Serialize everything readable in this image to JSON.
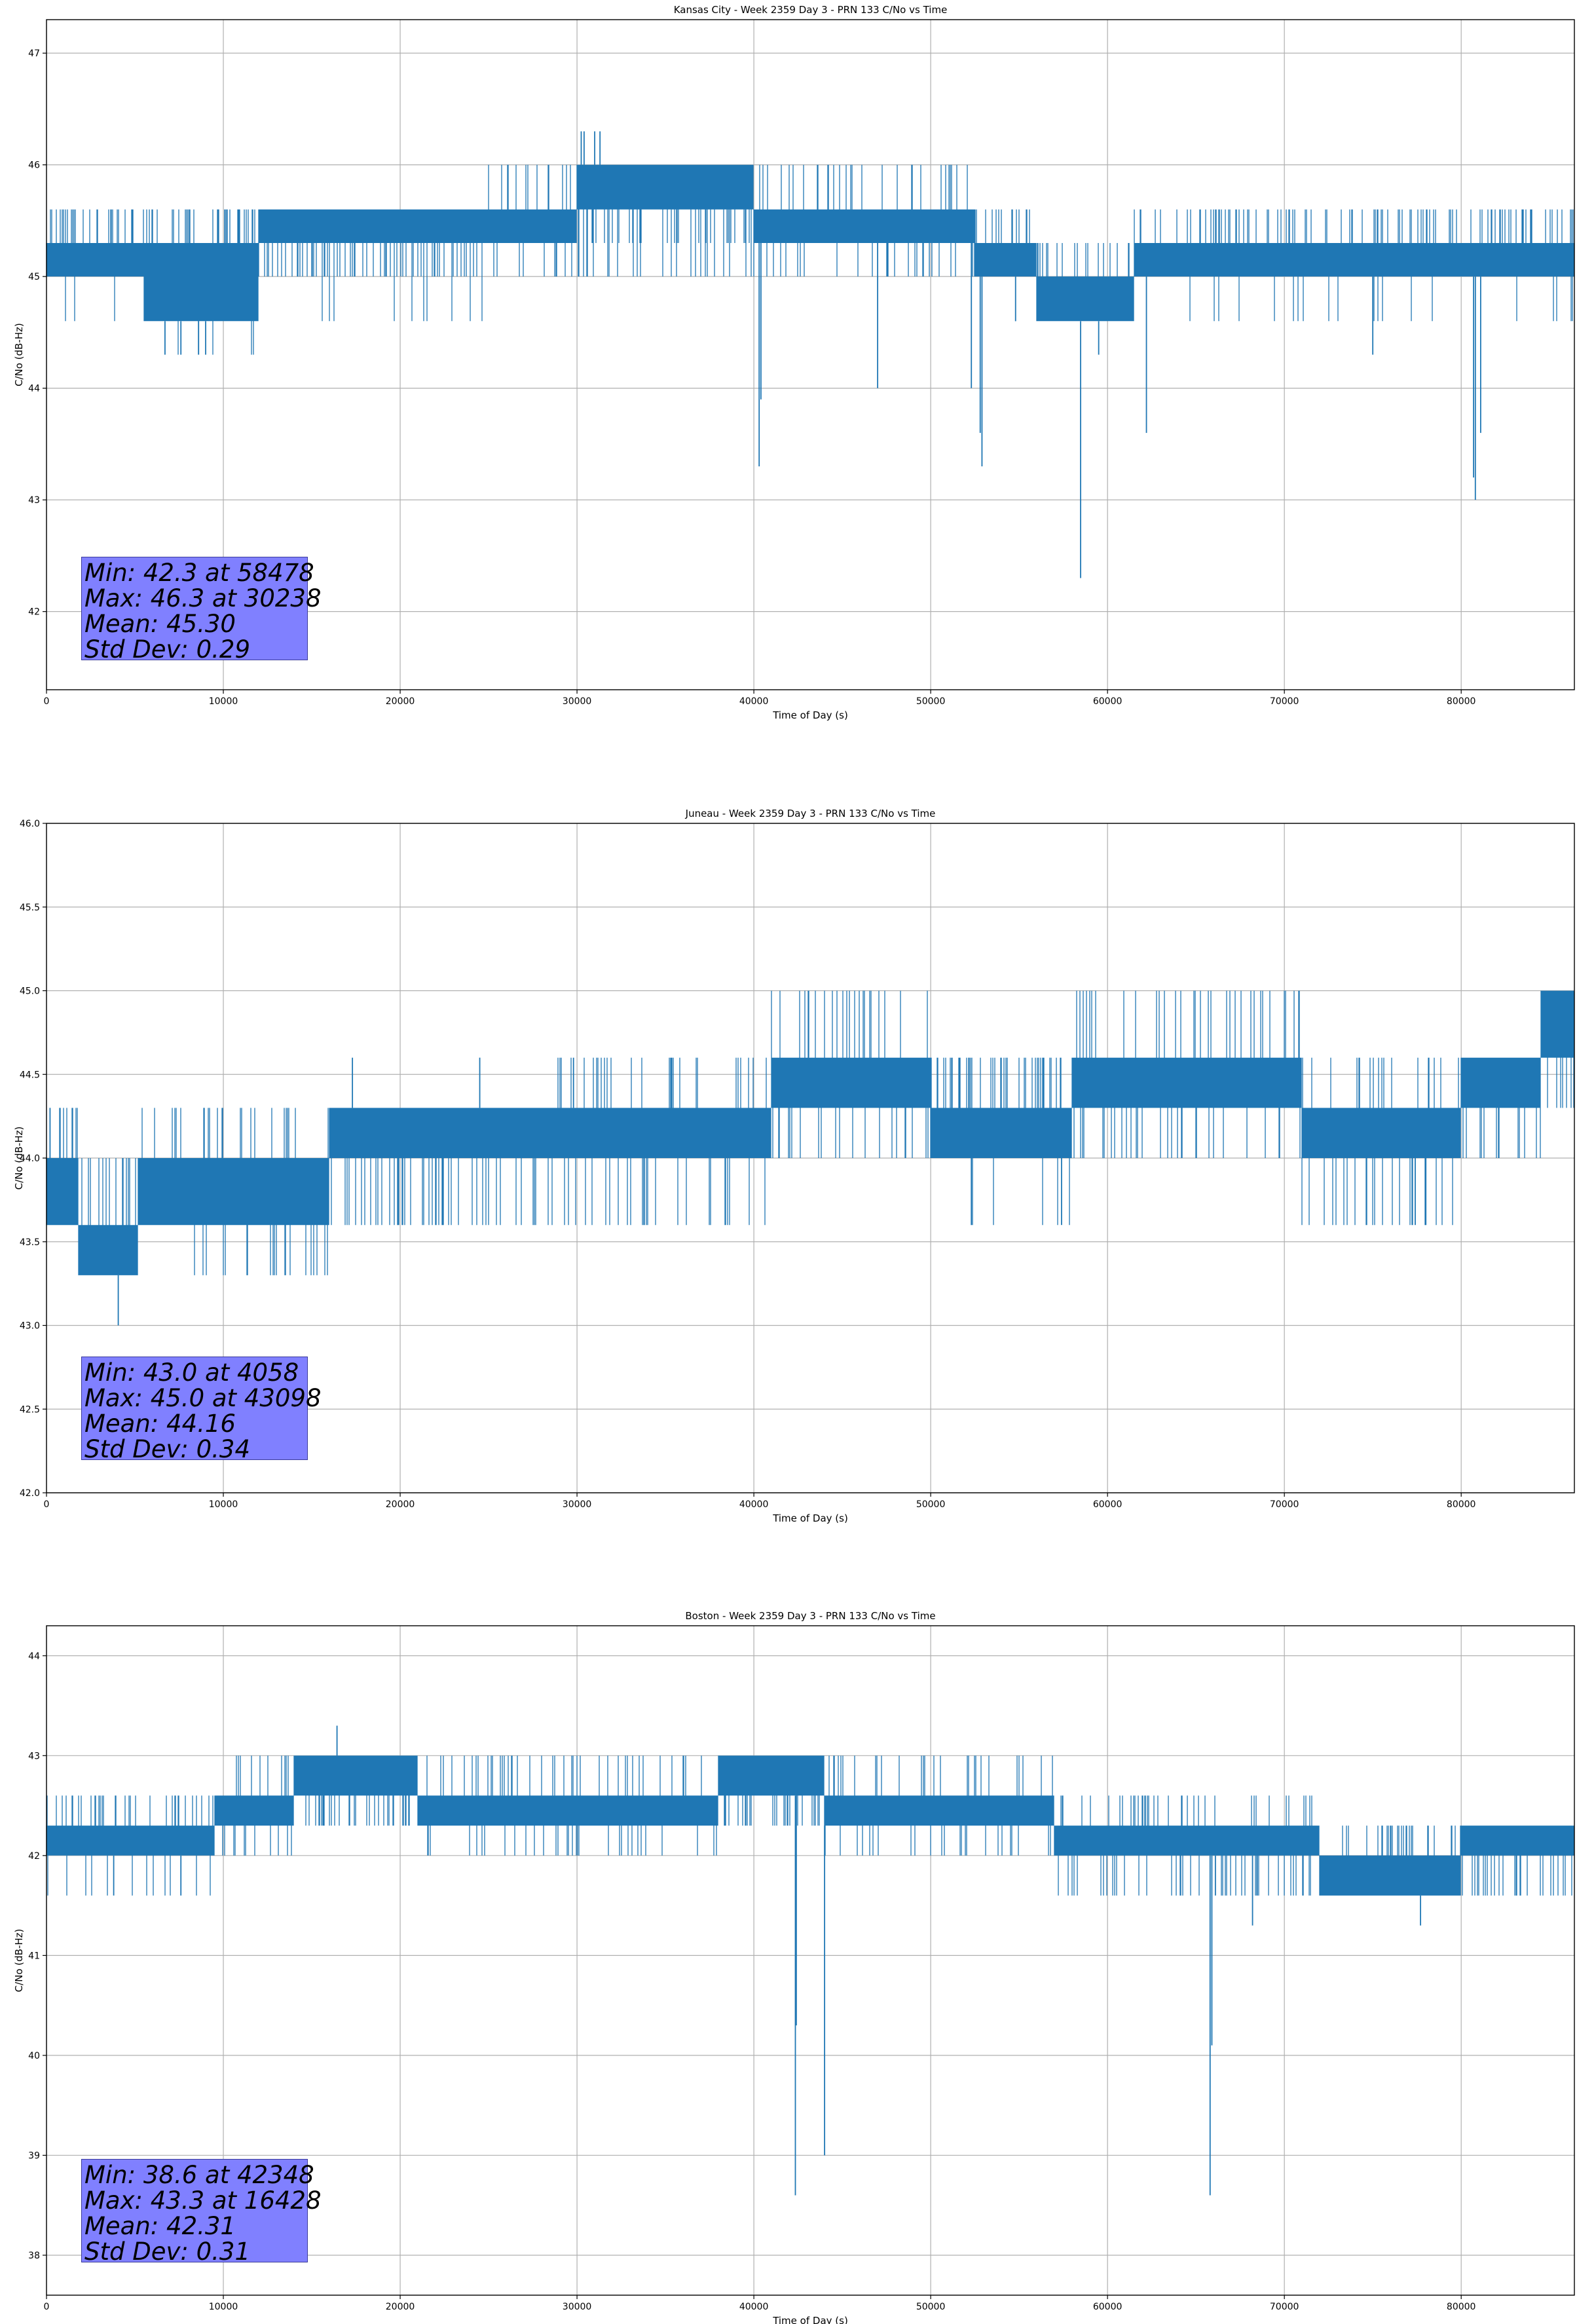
{
  "chart_data": [
    {
      "type": "line",
      "title": "Kansas City - Week 2359 Day 3 - PRN 133 C/No vs Time",
      "xlabel": "Time of Day (s)",
      "ylabel": "C/No (dB-Hz)",
      "xlim": [
        0,
        86400
      ],
      "ylim": [
        41.3,
        47.3
      ],
      "xticks": [
        0,
        10000,
        20000,
        30000,
        40000,
        50000,
        60000,
        70000,
        80000
      ],
      "yticks": [
        42,
        43,
        44,
        45,
        46,
        47
      ],
      "ytick_labels": [
        "42",
        "43",
        "44",
        "45",
        "46",
        "47"
      ],
      "grid": true,
      "line_color": "#1f77b4",
      "series": [
        {
          "name": "C/No",
          "segments": [
            {
              "x0": 0,
              "x1": 5500,
              "band": [
                45.0,
                45.3
              ],
              "fluct": [
                45.6
              ],
              "dips": [
                44.6
              ]
            },
            {
              "x0": 5500,
              "x1": 12000,
              "band": [
                44.6,
                45.3
              ],
              "fluct": [
                45.6
              ],
              "dips": [
                44.3
              ]
            },
            {
              "x0": 12000,
              "x1": 25000,
              "band": [
                45.3,
                45.6
              ],
              "fluct": [
                45.0
              ],
              "dips": [
                44.6
              ]
            },
            {
              "x0": 25000,
              "x1": 30000,
              "band": [
                45.3,
                45.6
              ],
              "fluct": [
                46.0,
                45.0
              ],
              "dips": []
            },
            {
              "x0": 30000,
              "x1": 40000,
              "band": [
                45.6,
                46.0
              ],
              "fluct": [
                45.3,
                45.0
              ],
              "dips": []
            },
            {
              "x0": 40000,
              "x1": 52500,
              "band": [
                45.3,
                45.6
              ],
              "fluct": [
                46.0,
                45.0
              ],
              "dips": []
            },
            {
              "x0": 52500,
              "x1": 56000,
              "band": [
                45.0,
                45.3
              ],
              "fluct": [
                45.6
              ],
              "dips": []
            },
            {
              "x0": 56000,
              "x1": 61500,
              "band": [
                44.6,
                45.0
              ],
              "fluct": [
                45.3
              ],
              "dips": []
            },
            {
              "x0": 61500,
              "x1": 86400,
              "band": [
                45.0,
                45.3
              ],
              "fluct": [
                45.6
              ],
              "dips": [
                44.6
              ]
            }
          ],
          "spikes": [
            [
              30238,
              46.3
            ],
            [
              31000,
              46.3
            ],
            [
              31300,
              46.3
            ],
            [
              30400,
              46.3
            ],
            [
              40300,
              43.3
            ],
            [
              40400,
              43.9
            ],
            [
              47000,
              44.0
            ],
            [
              52300,
              44.0
            ],
            [
              52900,
              43.3
            ],
            [
              52800,
              43.6
            ],
            [
              58478,
              42.3
            ],
            [
              59500,
              44.3
            ],
            [
              62200,
              43.6
            ],
            [
              80800,
              43.0
            ],
            [
              80700,
              43.2
            ],
            [
              81100,
              43.6
            ],
            [
              6700,
              44.3
            ],
            [
              7600,
              44.3
            ],
            [
              8600,
              44.3
            ],
            [
              9000,
              44.3
            ],
            [
              75000,
              44.3
            ],
            [
              54800,
              44.6
            ],
            [
              56600,
              44.6
            ]
          ]
        }
      ],
      "stats": {
        "min_line": "Min: 42.3 at 58478",
        "max_line": "Max: 46.3 at 30238",
        "mean_line": "Mean: 45.30",
        "std_line": "Std Dev: 0.29"
      }
    },
    {
      "type": "line",
      "title": "Juneau - Week 2359 Day 3 - PRN 133 C/No vs Time",
      "xlabel": "Time of Day (s)",
      "ylabel": "C/No (dB-Hz)",
      "xlim": [
        0,
        86400
      ],
      "ylim": [
        42.0,
        46.0
      ],
      "xticks": [
        0,
        10000,
        20000,
        30000,
        40000,
        50000,
        60000,
        70000,
        80000
      ],
      "yticks": [
        42.0,
        42.5,
        43.0,
        43.5,
        44.0,
        44.5,
        45.0,
        45.5,
        46.0
      ],
      "ytick_labels": [
        "42.0",
        "42.5",
        "43.0",
        "43.5",
        "44.0",
        "44.5",
        "45.0",
        "45.5",
        "46.0"
      ],
      "grid": true,
      "line_color": "#1f77b4",
      "series": [
        {
          "name": "C/No",
          "segments": [
            {
              "x0": 0,
              "x1": 1800,
              "band": [
                43.6,
                44.0
              ],
              "fluct": [
                44.3
              ],
              "dips": []
            },
            {
              "x0": 1800,
              "x1": 5200,
              "band": [
                43.3,
                43.6
              ],
              "fluct": [
                44.0
              ],
              "dips": []
            },
            {
              "x0": 5200,
              "x1": 12000,
              "band": [
                43.6,
                44.0
              ],
              "fluct": [
                43.3,
                44.3
              ],
              "dips": []
            },
            {
              "x0": 12000,
              "x1": 16000,
              "band": [
                43.6,
                44.0
              ],
              "fluct": [
                44.3,
                43.3
              ],
              "dips": []
            },
            {
              "x0": 16000,
              "x1": 28000,
              "band": [
                44.0,
                44.3
              ],
              "fluct": [
                43.6
              ],
              "dips": []
            },
            {
              "x0": 28000,
              "x1": 38000,
              "band": [
                44.0,
                44.3
              ],
              "fluct": [
                44.6,
                43.6
              ],
              "dips": []
            },
            {
              "x0": 38000,
              "x1": 41000,
              "band": [
                44.0,
                44.3
              ],
              "fluct": [
                43.6,
                44.6
              ],
              "dips": []
            },
            {
              "x0": 41000,
              "x1": 50000,
              "band": [
                44.3,
                44.6
              ],
              "fluct": [
                45.0,
                44.0
              ],
              "dips": []
            },
            {
              "x0": 50000,
              "x1": 58000,
              "band": [
                44.0,
                44.3
              ],
              "fluct": [
                44.6
              ],
              "dips": [
                43.6
              ]
            },
            {
              "x0": 58000,
              "x1": 71000,
              "band": [
                44.3,
                44.6
              ],
              "fluct": [
                45.0,
                44.0
              ],
              "dips": []
            },
            {
              "x0": 71000,
              "x1": 80000,
              "band": [
                44.0,
                44.3
              ],
              "fluct": [
                44.6,
                43.6
              ],
              "dips": []
            },
            {
              "x0": 80000,
              "x1": 84500,
              "band": [
                44.3,
                44.6
              ],
              "fluct": [
                44.0
              ],
              "dips": []
            },
            {
              "x0": 84500,
              "x1": 86400,
              "band": [
                44.6,
                45.0
              ],
              "fluct": [
                44.3
              ],
              "dips": []
            }
          ],
          "spikes": [
            [
              4058,
              43.0
            ],
            [
              43098,
              45.0
            ],
            [
              200,
              44.3
            ],
            [
              52300,
              43.6
            ],
            [
              57400,
              43.6
            ],
            [
              17300,
              44.6
            ],
            [
              24500,
              44.6
            ],
            [
              29800,
              44.6
            ],
            [
              8900,
              44.3
            ],
            [
              78000,
              43.6
            ],
            [
              77400,
              43.6
            ]
          ]
        }
      ],
      "stats": {
        "min_line": "Min: 43.0 at 4058",
        "max_line": "Max: 45.0 at 43098",
        "mean_line": "Mean: 44.16",
        "std_line": "Std Dev: 0.34"
      }
    },
    {
      "type": "line",
      "title": "Boston - Week 2359 Day 3 - PRN 133 C/No vs Time",
      "xlabel": "Time of Day (s)",
      "ylabel": "C/No (dB-Hz)",
      "xlim": [
        0,
        86400
      ],
      "ylim": [
        37.6,
        44.3
      ],
      "xticks": [
        0,
        10000,
        20000,
        30000,
        40000,
        50000,
        60000,
        70000,
        80000
      ],
      "yticks": [
        38,
        39,
        40,
        41,
        42,
        43,
        44
      ],
      "ytick_labels": [
        "38",
        "39",
        "40",
        "41",
        "42",
        "43",
        "44"
      ],
      "grid": true,
      "line_color": "#1f77b4",
      "series": [
        {
          "name": "C/No",
          "segments": [
            {
              "x0": 0,
              "x1": 9500,
              "band": [
                42.0,
                42.3
              ],
              "fluct": [
                42.6
              ],
              "dips": [
                41.6
              ]
            },
            {
              "x0": 9500,
              "x1": 14000,
              "band": [
                42.3,
                42.6
              ],
              "fluct": [
                42.0,
                43.0
              ],
              "dips": []
            },
            {
              "x0": 14000,
              "x1": 21000,
              "band": [
                42.6,
                43.0
              ],
              "fluct": [
                42.3
              ],
              "dips": []
            },
            {
              "x0": 21000,
              "x1": 38000,
              "band": [
                42.3,
                42.6
              ],
              "fluct": [
                43.0,
                42.0
              ],
              "dips": []
            },
            {
              "x0": 38000,
              "x1": 44000,
              "band": [
                42.6,
                43.0
              ],
              "fluct": [
                42.3
              ],
              "dips": []
            },
            {
              "x0": 44000,
              "x1": 57000,
              "band": [
                42.3,
                42.6
              ],
              "fluct": [
                42.0,
                43.0
              ],
              "dips": []
            },
            {
              "x0": 57000,
              "x1": 72000,
              "band": [
                42.0,
                42.3
              ],
              "fluct": [
                41.6,
                42.6
              ],
              "dips": []
            },
            {
              "x0": 72000,
              "x1": 80000,
              "band": [
                41.6,
                42.0
              ],
              "fluct": [
                42.3
              ],
              "dips": []
            },
            {
              "x0": 80000,
              "x1": 86400,
              "band": [
                42.0,
                42.3
              ],
              "fluct": [
                41.6
              ],
              "dips": []
            }
          ],
          "spikes": [
            [
              16428,
              43.3
            ],
            [
              42348,
              38.6
            ],
            [
              42400,
              40.3
            ],
            [
              44000,
              39.0
            ],
            [
              65800,
              38.6
            ],
            [
              65900,
              40.1
            ],
            [
              66100,
              41.6
            ],
            [
              68200,
              41.3
            ],
            [
              77700,
              41.3
            ],
            [
              3800,
              41.6
            ],
            [
              7600,
              41.6
            ]
          ]
        }
      ],
      "stats": {
        "min_line": "Min: 38.6 at 42348",
        "max_line": "Max: 43.3 at 16428",
        "mean_line": "Mean: 42.31",
        "std_line": "Std Dev: 0.31"
      }
    }
  ]
}
